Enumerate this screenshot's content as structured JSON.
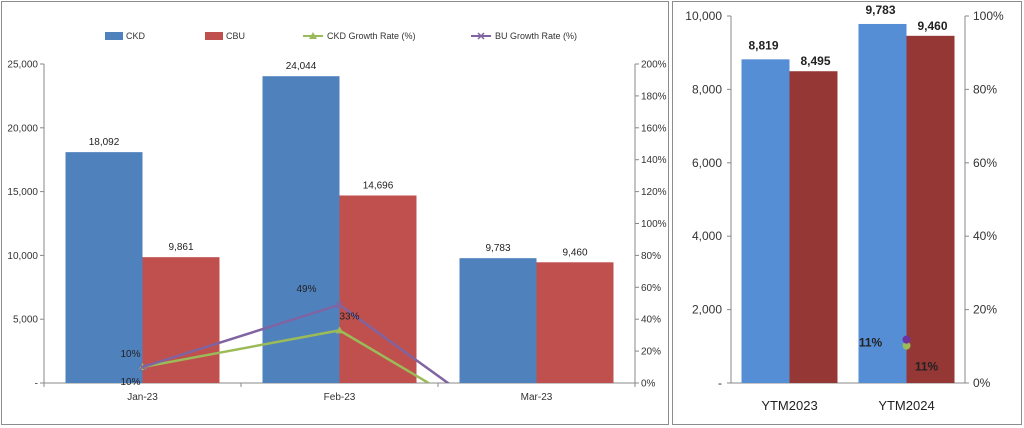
{
  "chart_data": [
    {
      "type": "bar",
      "categories": [
        "Jan-23",
        "Feb-23",
        "Mar-23"
      ],
      "series": [
        {
          "name": "CKD",
          "values": [
            18092,
            24044,
            9783
          ],
          "color": "#4f81bd"
        },
        {
          "name": "CBU",
          "values": [
            9861,
            14696,
            9460
          ],
          "color": "#c0504d"
        }
      ],
      "value_labels": [
        [
          "18,092",
          "24,044",
          "9,783"
        ],
        [
          "9,861",
          "14,696",
          "9,460"
        ]
      ],
      "line_series": [
        {
          "name": "CKD Growth Rate (%)",
          "values": [
            10,
            33,
            -40
          ],
          "labels": [
            "10%",
            "33%",
            ""
          ],
          "color": "#9bbb59",
          "marker": "triangle",
          "axis": "secondary"
        },
        {
          "name": "BU Growth Rate (%)",
          "values": [
            10,
            49,
            -40
          ],
          "labels": [
            "10%",
            "49%",
            ""
          ],
          "color": "#8064a2",
          "marker": "x",
          "axis": "secondary"
        }
      ],
      "ylim": [
        0,
        25000
      ],
      "yticks": [
        0,
        5000,
        10000,
        15000,
        20000,
        25000
      ],
      "ytick_labels": [
        "-",
        "5,000",
        "10,000",
        "15,000",
        "20,000",
        "25,000"
      ],
      "y2lim": [
        0,
        200
      ],
      "y2ticks": [
        0,
        20,
        40,
        60,
        80,
        100,
        120,
        140,
        160,
        180,
        200
      ],
      "y2tick_labels": [
        "0%",
        "20%",
        "40%",
        "60%",
        "80%",
        "100%",
        "120%",
        "140%",
        "160%",
        "180%",
        "200%"
      ],
      "legend": "top",
      "grid": false
    },
    {
      "type": "bar",
      "categories": [
        "YTM2023",
        "YTM2024"
      ],
      "series": [
        {
          "values": [
            8819,
            9783
          ],
          "color": "#558ed5"
        },
        {
          "values": [
            8495,
            9460
          ],
          "color": "#953735"
        }
      ],
      "value_labels": [
        [
          "8,819",
          "9,783"
        ],
        [
          "8,495",
          "9,460"
        ]
      ],
      "line_series": [
        {
          "values": [
            null,
            11
          ],
          "labels": [
            "",
            "11%"
          ],
          "color": "#9bbb59",
          "marker": "circle",
          "axis": "secondary"
        },
        {
          "values": [
            null,
            11
          ],
          "labels": [
            "",
            "11%"
          ],
          "color": "#7030a0",
          "marker": "circle",
          "axis": "secondary"
        }
      ],
      "ylim": [
        0,
        10000
      ],
      "yticks": [
        0,
        2000,
        4000,
        6000,
        8000,
        10000
      ],
      "ytick_labels": [
        "-",
        "2,000",
        "4,000",
        "6,000",
        "8,000",
        "10,000"
      ],
      "y2lim": [
        0,
        100
      ],
      "y2ticks": [
        0,
        20,
        40,
        60,
        80,
        100
      ],
      "y2tick_labels": [
        "0%",
        "20%",
        "40%",
        "60%",
        "80%",
        "100%"
      ],
      "legend": "none",
      "grid": false
    }
  ]
}
